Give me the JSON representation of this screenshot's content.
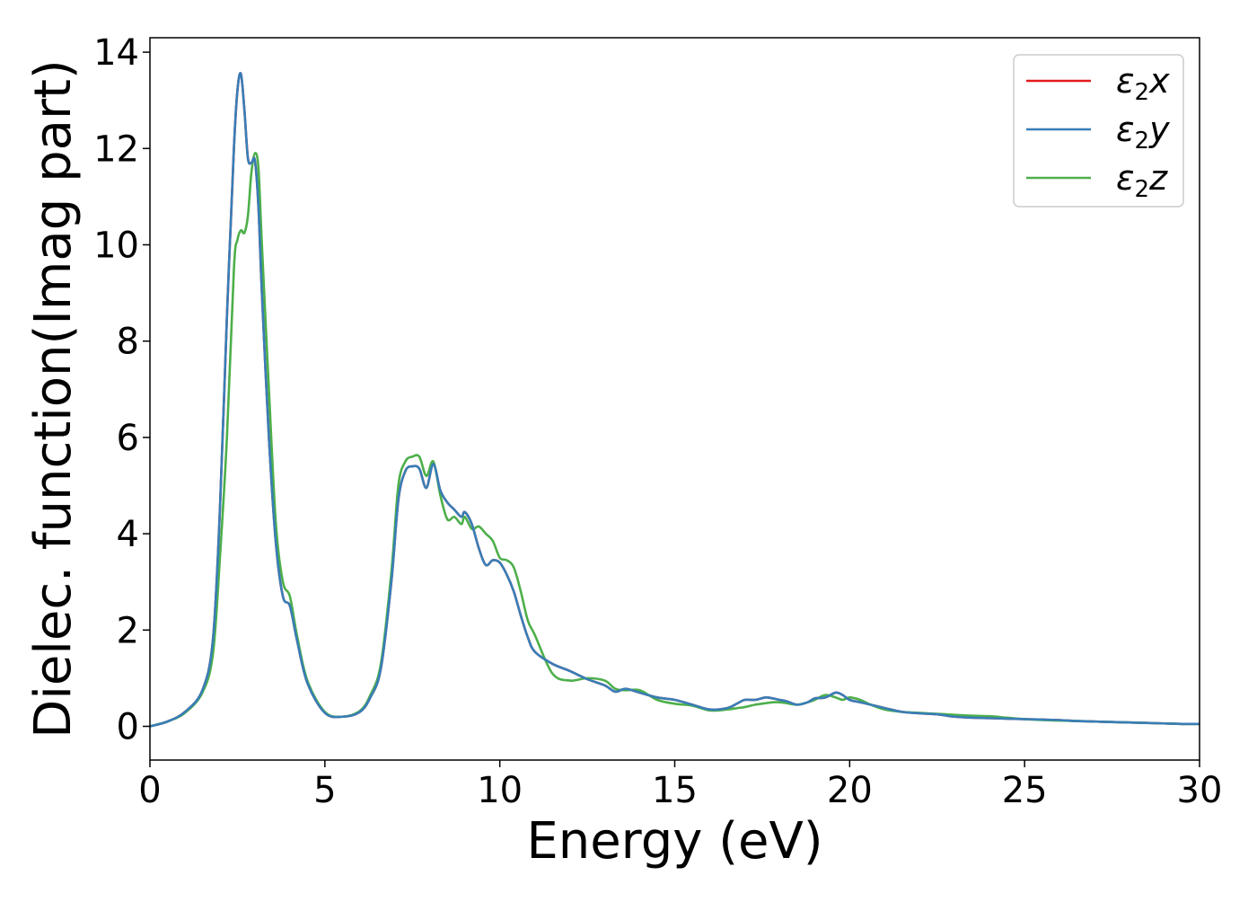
{
  "chart_data": {
    "type": "line",
    "xlabel": "Energy (eV)",
    "ylabel": "Dielec. function(Imag part)",
    "xlim": [
      0,
      30
    ],
    "ylim": [
      -0.7,
      14.3
    ],
    "xticks": [
      0,
      5,
      10,
      15,
      20,
      25,
      30
    ],
    "xtick_labels": [
      "0",
      "5",
      "10",
      "15",
      "20",
      "25",
      "30"
    ],
    "yticks": [
      0,
      2,
      4,
      6,
      8,
      10,
      12,
      14
    ],
    "ytick_labels": [
      "0",
      "2",
      "4",
      "6",
      "8",
      "10",
      "12",
      "14"
    ],
    "grid": false,
    "legend_position": "top-right",
    "series": [
      {
        "name": "ε2x",
        "legend": {
          "base": "ε",
          "sub": "2",
          "var": "x"
        },
        "color": "#e41a1c",
        "x": [
          0,
          0.5,
          1,
          1.5,
          1.8,
          2.0,
          2.2,
          2.4,
          2.5,
          2.6,
          2.7,
          2.8,
          2.9,
          3.0,
          3.1,
          3.2,
          3.4,
          3.6,
          3.8,
          4.0,
          4.2,
          4.5,
          5.0,
          5.5,
          6.0,
          6.3,
          6.6,
          6.9,
          7.1,
          7.3,
          7.5,
          7.7,
          7.9,
          8.1,
          8.3,
          8.5,
          8.7,
          8.9,
          9.0,
          9.2,
          9.4,
          9.6,
          9.8,
          10.0,
          10.2,
          10.4,
          10.6,
          10.8,
          11.0,
          11.5,
          12.0,
          12.5,
          13.0,
          13.3,
          13.6,
          14.0,
          14.5,
          15.0,
          15.5,
          16.0,
          16.5,
          16.8,
          17.0,
          17.3,
          17.6,
          17.8,
          18.0,
          18.2,
          18.5,
          18.8,
          19.0,
          19.3,
          19.6,
          19.8,
          20.0,
          20.3,
          20.6,
          21.0,
          21.5,
          22.0,
          22.5,
          23.0,
          23.5,
          24.0,
          24.5,
          25.0,
          25.5,
          26.0,
          26.5,
          27.0,
          27.5,
          28.0,
          28.5,
          29.0,
          29.5,
          30.0
        ],
        "y": [
          0,
          0.1,
          0.3,
          0.75,
          1.8,
          4.5,
          8.5,
          12.0,
          13.2,
          13.55,
          12.8,
          11.8,
          11.7,
          11.75,
          10.8,
          9.0,
          6.0,
          3.8,
          2.7,
          2.5,
          1.8,
          0.9,
          0.28,
          0.2,
          0.3,
          0.6,
          1.2,
          3.0,
          4.7,
          5.3,
          5.4,
          5.35,
          4.95,
          5.45,
          4.9,
          4.65,
          4.5,
          4.35,
          4.45,
          4.2,
          3.7,
          3.35,
          3.45,
          3.4,
          3.15,
          2.8,
          2.3,
          1.85,
          1.55,
          1.3,
          1.15,
          0.98,
          0.85,
          0.72,
          0.78,
          0.7,
          0.6,
          0.55,
          0.45,
          0.35,
          0.38,
          0.48,
          0.55,
          0.55,
          0.6,
          0.58,
          0.55,
          0.52,
          0.45,
          0.5,
          0.58,
          0.6,
          0.7,
          0.65,
          0.55,
          0.5,
          0.45,
          0.38,
          0.3,
          0.27,
          0.25,
          0.2,
          0.18,
          0.17,
          0.16,
          0.15,
          0.14,
          0.13,
          0.11,
          0.1,
          0.09,
          0.08,
          0.07,
          0.06,
          0.05,
          0.05
        ]
      },
      {
        "name": "ε2y",
        "legend": {
          "base": "ε",
          "sub": "2",
          "var": "y"
        },
        "color": "#377eb8",
        "x": [
          0,
          0.5,
          1,
          1.5,
          1.8,
          2.0,
          2.2,
          2.4,
          2.5,
          2.6,
          2.7,
          2.8,
          2.9,
          3.0,
          3.1,
          3.2,
          3.4,
          3.6,
          3.8,
          4.0,
          4.2,
          4.5,
          5.0,
          5.5,
          6.0,
          6.3,
          6.6,
          6.9,
          7.1,
          7.3,
          7.5,
          7.7,
          7.9,
          8.1,
          8.3,
          8.5,
          8.7,
          8.9,
          9.0,
          9.2,
          9.4,
          9.6,
          9.8,
          10.0,
          10.2,
          10.4,
          10.6,
          10.8,
          11.0,
          11.5,
          12.0,
          12.5,
          13.0,
          13.3,
          13.6,
          14.0,
          14.5,
          15.0,
          15.5,
          16.0,
          16.5,
          16.8,
          17.0,
          17.3,
          17.6,
          17.8,
          18.0,
          18.2,
          18.5,
          18.8,
          19.0,
          19.3,
          19.6,
          19.8,
          20.0,
          20.3,
          20.6,
          21.0,
          21.5,
          22.0,
          22.5,
          23.0,
          23.5,
          24.0,
          24.5,
          25.0,
          25.5,
          26.0,
          26.5,
          27.0,
          27.5,
          28.0,
          28.5,
          29.0,
          29.5,
          30.0
        ],
        "y": [
          0,
          0.1,
          0.3,
          0.75,
          1.8,
          4.5,
          8.5,
          12.0,
          13.2,
          13.55,
          12.8,
          11.8,
          11.7,
          11.75,
          10.8,
          9.0,
          6.0,
          3.8,
          2.7,
          2.5,
          1.8,
          0.9,
          0.28,
          0.2,
          0.3,
          0.6,
          1.2,
          3.0,
          4.7,
          5.3,
          5.4,
          5.35,
          4.95,
          5.45,
          4.9,
          4.65,
          4.5,
          4.35,
          4.45,
          4.2,
          3.7,
          3.35,
          3.45,
          3.4,
          3.15,
          2.8,
          2.3,
          1.85,
          1.55,
          1.3,
          1.15,
          0.98,
          0.85,
          0.72,
          0.78,
          0.7,
          0.6,
          0.55,
          0.45,
          0.35,
          0.38,
          0.48,
          0.55,
          0.55,
          0.6,
          0.58,
          0.55,
          0.52,
          0.45,
          0.5,
          0.58,
          0.6,
          0.7,
          0.65,
          0.55,
          0.5,
          0.45,
          0.38,
          0.3,
          0.27,
          0.25,
          0.2,
          0.18,
          0.17,
          0.16,
          0.15,
          0.14,
          0.13,
          0.11,
          0.1,
          0.09,
          0.08,
          0.07,
          0.06,
          0.05,
          0.05
        ]
      },
      {
        "name": "ε2z",
        "legend": {
          "base": "ε",
          "sub": "2",
          "var": "z"
        },
        "color": "#4daf4a",
        "x": [
          0,
          0.5,
          1,
          1.5,
          1.8,
          2.0,
          2.2,
          2.4,
          2.5,
          2.6,
          2.7,
          2.8,
          2.9,
          3.0,
          3.1,
          3.2,
          3.4,
          3.6,
          3.8,
          4.0,
          4.2,
          4.5,
          5.0,
          5.5,
          6.0,
          6.3,
          6.6,
          6.9,
          7.1,
          7.3,
          7.5,
          7.7,
          7.9,
          8.1,
          8.3,
          8.5,
          8.7,
          8.9,
          9.0,
          9.2,
          9.4,
          9.6,
          9.8,
          10.0,
          10.2,
          10.4,
          10.6,
          10.8,
          11.0,
          11.5,
          12.0,
          12.5,
          13.0,
          13.3,
          13.6,
          14.0,
          14.5,
          15.0,
          15.5,
          16.0,
          16.5,
          16.8,
          17.0,
          17.3,
          17.6,
          17.8,
          18.0,
          18.2,
          18.5,
          18.8,
          19.0,
          19.3,
          19.6,
          19.8,
          20.0,
          20.3,
          20.6,
          21.0,
          21.5,
          22.0,
          22.5,
          23.0,
          23.5,
          24.0,
          24.5,
          25.0,
          25.5,
          26.0,
          26.5,
          27.0,
          27.5,
          28.0,
          28.5,
          29.0,
          29.5,
          30.0
        ],
        "y": [
          0,
          0.1,
          0.28,
          0.7,
          1.5,
          3.5,
          6.0,
          9.5,
          10.1,
          10.3,
          10.25,
          10.6,
          11.5,
          11.9,
          11.6,
          10.0,
          7.0,
          4.2,
          3.0,
          2.7,
          1.9,
          0.95,
          0.3,
          0.2,
          0.32,
          0.65,
          1.3,
          3.2,
          5.0,
          5.5,
          5.6,
          5.6,
          5.2,
          5.5,
          4.8,
          4.3,
          4.35,
          4.2,
          4.35,
          4.1,
          4.15,
          4.0,
          3.85,
          3.5,
          3.45,
          3.3,
          2.8,
          2.2,
          1.9,
          1.1,
          0.95,
          1.0,
          0.95,
          0.78,
          0.75,
          0.75,
          0.55,
          0.47,
          0.43,
          0.33,
          0.35,
          0.38,
          0.4,
          0.45,
          0.48,
          0.5,
          0.5,
          0.48,
          0.45,
          0.5,
          0.55,
          0.65,
          0.6,
          0.55,
          0.6,
          0.55,
          0.45,
          0.35,
          0.3,
          0.28,
          0.26,
          0.24,
          0.22,
          0.21,
          0.18,
          0.15,
          0.13,
          0.12,
          0.11,
          0.1,
          0.09,
          0.08,
          0.07,
          0.06,
          0.05,
          0.05
        ]
      }
    ]
  }
}
